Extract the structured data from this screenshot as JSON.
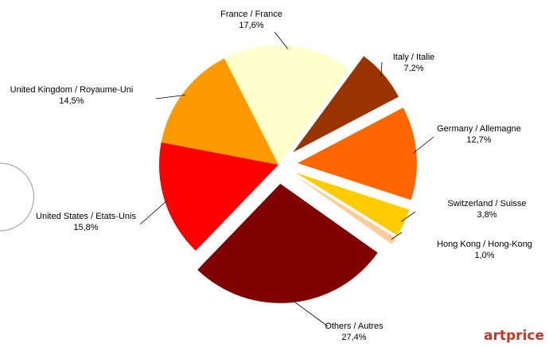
{
  "chart_data": {
    "type": "pie",
    "categories": [
      "France / France",
      "Italy / Italie",
      "Germany / Allemagne",
      "Switzerland / Suisse",
      "Hong Kong / Hong-Kong",
      "Others / Autres",
      "United States / Etats-Unis",
      "United Kingdom / Royaume-Uni"
    ],
    "values": [
      17.6,
      7.2,
      12.7,
      3.8,
      1.0,
      27.4,
      15.8,
      14.5
    ],
    "value_labels": [
      "17,6%",
      "7,2%",
      "12,7%",
      "3,8%",
      "1,0%",
      "27,4%",
      "15,8%",
      "14,5%"
    ],
    "colors": [
      "#ffffcc",
      "#993300",
      "#ff6600",
      "#ffcc00",
      "#ffcc99",
      "#800000",
      "#ff0000",
      "#ff9900"
    ],
    "exploded": [
      false,
      true,
      true,
      true,
      true,
      true,
      false,
      false
    ],
    "logo": "artprice"
  }
}
